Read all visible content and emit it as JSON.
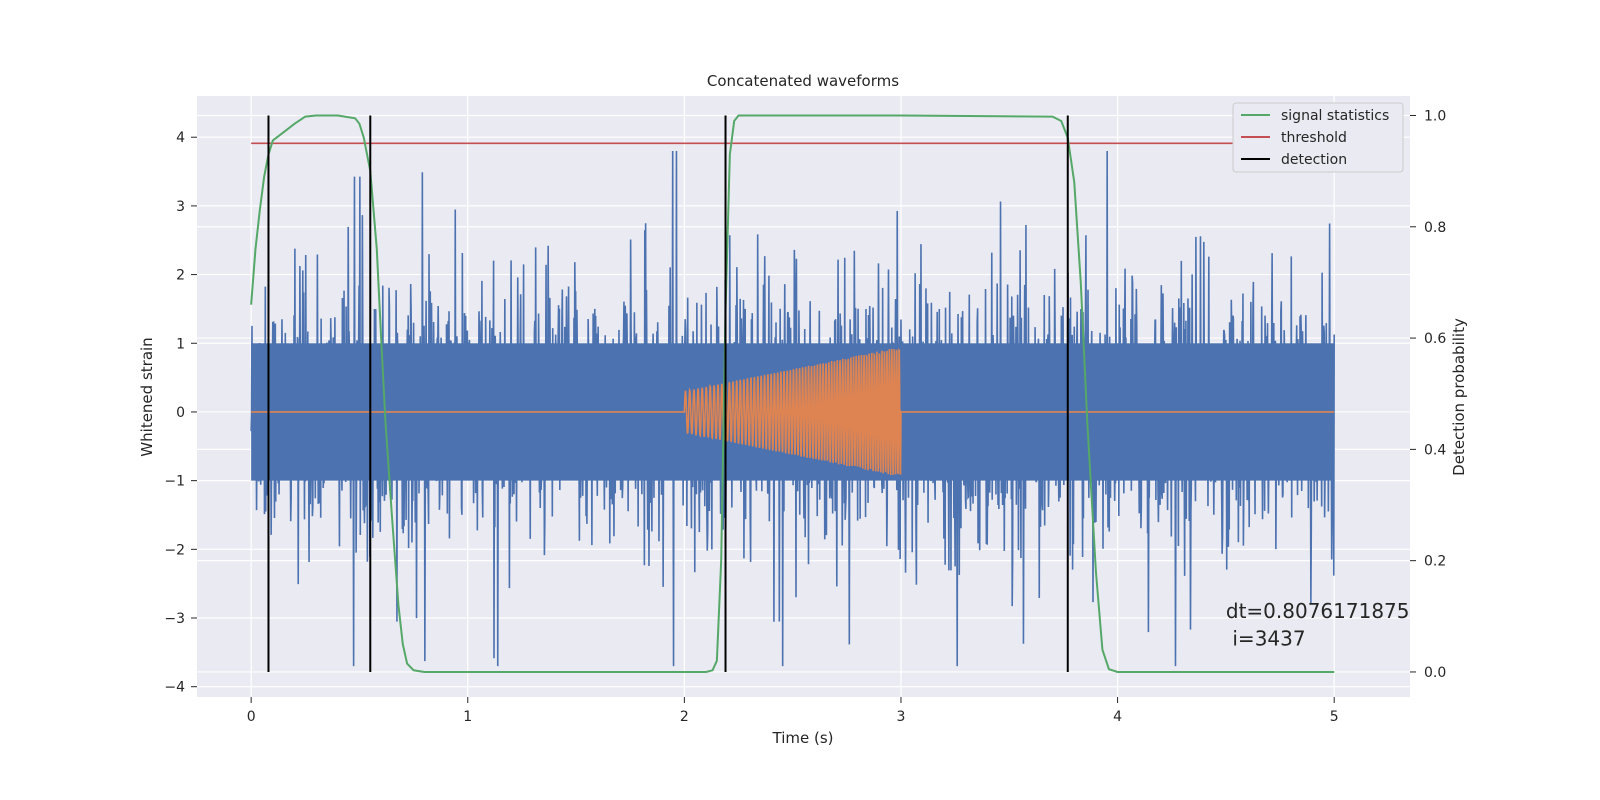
{
  "chart_data": {
    "type": "line",
    "title": "Concatenated waveforms",
    "xlabel": "Time (s)",
    "ylabel": "Whitened strain",
    "ylabel_right": "Detection probability",
    "xlim": [
      -0.25,
      5.35
    ],
    "ylim": [
      -4.15,
      4.6
    ],
    "ylim_right": [
      -0.045,
      1.035
    ],
    "x_ticks": [
      0,
      1,
      2,
      3,
      4,
      5
    ],
    "y_ticks": [
      -4,
      -3,
      -2,
      -1,
      0,
      1,
      2,
      3,
      4
    ],
    "y_ticks_right": [
      0.0,
      0.2,
      0.4,
      0.6,
      0.8,
      1.0
    ],
    "grid": true,
    "legend_position": "top-right",
    "legend": [
      {
        "label": "signal statistics",
        "color": "#55a868"
      },
      {
        "label": "threshold",
        "color": "#c44e52"
      },
      {
        "label": "detection",
        "color": "#000000"
      }
    ],
    "series": [
      {
        "kind": "noise",
        "color": "#4c72b0",
        "x_range": [
          0,
          5
        ],
        "core_amplitude": 1.0,
        "peak_range": [
          -3.7,
          3.8
        ]
      },
      {
        "kind": "injected-chirp",
        "color": "#dd8452",
        "x_range": [
          2.0,
          3.0
        ],
        "amplitude_range": [
          0.3,
          0.95
        ],
        "baseline": 0
      },
      {
        "name": "signal statistics",
        "axis": "right",
        "color": "#55a868",
        "x": [
          0,
          0.02,
          0.04,
          0.06,
          0.08,
          0.1,
          0.15,
          0.2,
          0.25,
          0.3,
          0.4,
          0.48,
          0.5,
          0.52,
          0.55,
          0.58,
          0.6,
          0.62,
          0.65,
          0.68,
          0.7,
          0.72,
          0.75,
          0.8,
          1.0,
          1.5,
          2.0,
          2.1,
          2.13,
          2.15,
          2.17,
          2.19,
          2.21,
          2.23,
          2.25,
          2.3,
          3.0,
          3.7,
          3.74,
          3.77,
          3.8,
          3.83,
          3.86,
          3.9,
          3.93,
          3.96,
          4.0,
          4.5,
          4.85,
          5.0
        ],
        "values": [
          0.66,
          0.76,
          0.83,
          0.89,
          0.93,
          0.955,
          0.97,
          0.985,
          0.998,
          1.0,
          1.0,
          0.995,
          0.985,
          0.96,
          0.9,
          0.76,
          0.6,
          0.45,
          0.28,
          0.12,
          0.05,
          0.015,
          0.003,
          0.0,
          0.0,
          0.0,
          0.0,
          0.0,
          0.003,
          0.02,
          0.2,
          0.65,
          0.93,
          0.99,
          1.0,
          1.0,
          1.0,
          0.998,
          0.99,
          0.96,
          0.88,
          0.7,
          0.45,
          0.18,
          0.04,
          0.005,
          0.0,
          0.0,
          0.0,
          0.0
        ]
      },
      {
        "name": "threshold",
        "axis": "right",
        "color": "#c44e52",
        "x": [
          0,
          5
        ],
        "values": [
          0.95,
          0.95
        ]
      }
    ],
    "detections": {
      "x": [
        0.08,
        0.55,
        2.19,
        3.77
      ],
      "ymin": 0.0,
      "ymax": 1.0,
      "color": "#000000"
    },
    "annotations": [
      {
        "text": "dt=0.8076171875",
        "x": 4.5,
        "y": -3.0
      },
      {
        "text": "i=3437",
        "x": 4.53,
        "y": -3.4
      }
    ]
  }
}
